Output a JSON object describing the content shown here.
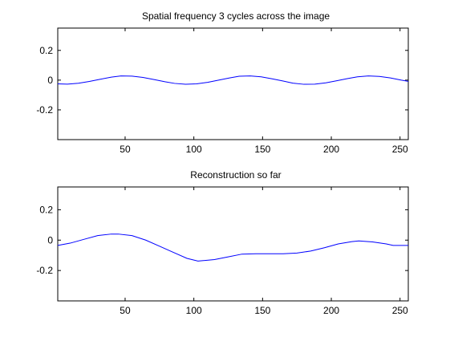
{
  "chart_data": [
    {
      "type": "line",
      "title": "Spatial frequency 3 cycles across the image",
      "xlabel": "",
      "ylabel": "",
      "xlim": [
        1,
        256
      ],
      "ylim": [
        -0.4,
        0.35
      ],
      "xticks": [
        50,
        100,
        150,
        200,
        250
      ],
      "yticks": [
        0.2,
        0,
        -0.2
      ],
      "ytick_labels": [
        "0.2",
        "0",
        "-0.2"
      ],
      "grid": false,
      "line_color": "#0000ff",
      "series": [
        {
          "x": [
            1,
            8,
            16,
            24,
            32,
            40,
            47,
            55,
            63,
            71,
            79,
            86,
            94,
            102,
            110,
            118,
            126,
            133,
            141,
            149,
            157,
            165,
            172,
            180,
            188,
            196,
            204,
            212,
            219,
            227,
            235,
            243,
            251,
            256
          ],
          "y": [
            -0.025,
            -0.027,
            -0.021,
            -0.009,
            0.006,
            0.02,
            0.028,
            0.027,
            0.018,
            0.004,
            -0.011,
            -0.022,
            -0.028,
            -0.025,
            -0.015,
            0.0,
            0.015,
            0.026,
            0.028,
            0.022,
            0.009,
            -0.006,
            -0.02,
            -0.028,
            -0.027,
            -0.018,
            -0.004,
            0.011,
            0.022,
            0.028,
            0.025,
            0.015,
            0.0,
            -0.008
          ]
        }
      ]
    },
    {
      "type": "line",
      "title": "Reconstruction so far",
      "xlabel": "",
      "ylabel": "",
      "xlim": [
        1,
        256
      ],
      "ylim": [
        -0.4,
        0.35
      ],
      "xticks": [
        50,
        100,
        150,
        200,
        250
      ],
      "yticks": [
        0.2,
        0,
        -0.2
      ],
      "ytick_labels": [
        "0.2",
        "0",
        "-0.2"
      ],
      "grid": false,
      "line_color": "#0000ff",
      "series": [
        {
          "x": [
            1,
            10,
            20,
            30,
            40,
            45,
            55,
            65,
            75,
            85,
            95,
            103,
            115,
            125,
            135,
            145,
            155,
            165,
            175,
            185,
            195,
            205,
            215,
            220,
            230,
            240,
            245,
            256
          ],
          "y": [
            -0.035,
            -0.02,
            0.005,
            0.03,
            0.04,
            0.04,
            0.03,
            0.0,
            -0.04,
            -0.08,
            -0.12,
            -0.138,
            -0.128,
            -0.11,
            -0.092,
            -0.09,
            -0.09,
            -0.09,
            -0.085,
            -0.072,
            -0.05,
            -0.025,
            -0.01,
            -0.005,
            -0.012,
            -0.025,
            -0.035,
            -0.035
          ]
        }
      ]
    }
  ]
}
